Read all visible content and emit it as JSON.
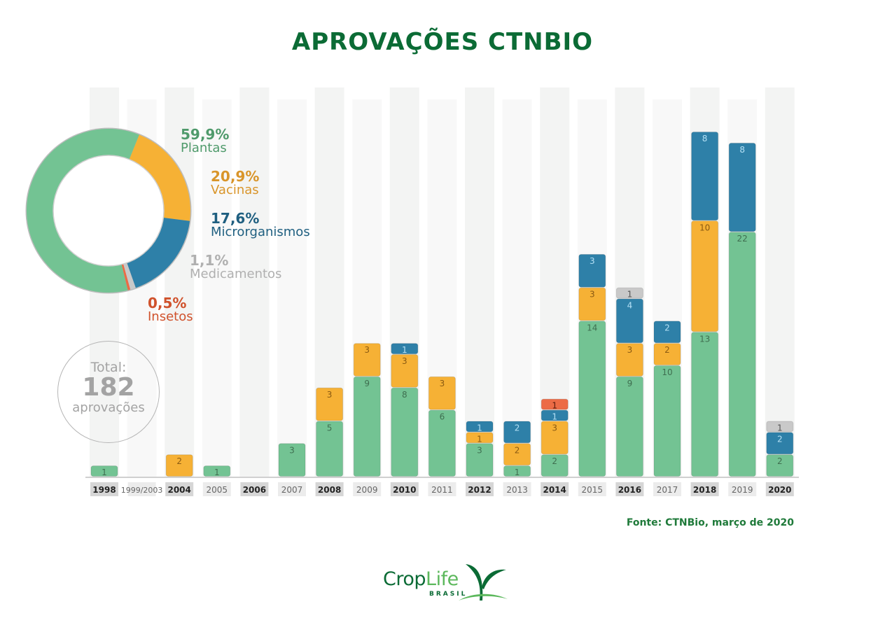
{
  "title": "APROVAÇÕES CTNBIO",
  "source": "Fonte: CTNBio, março de 2020",
  "logo": {
    "text_part1": "Crop",
    "text_part2": "Life",
    "subtext": "BRASIL"
  },
  "total": {
    "label": "Total:",
    "value": "182",
    "unit": "aprovações"
  },
  "colors": {
    "Plantas": "#73c393",
    "Vacinas": "#f6b135",
    "Microrganismos": "#2e80a8",
    "Insetos": "#ec6b45",
    "Medicamentos": "#c9c9c9"
  },
  "chart_data": [
    {
      "type": "bar",
      "stacked": true,
      "categories": [
        "1998",
        "1999/2003",
        "2004",
        "2005",
        "2006",
        "2007",
        "2008",
        "2009",
        "2010",
        "2011",
        "2012",
        "2013",
        "2014",
        "2015",
        "2016",
        "2017",
        "2018",
        "2019",
        "2020"
      ],
      "series": [
        {
          "name": "Plantas",
          "values": [
            1,
            0,
            0,
            1,
            0,
            3,
            5,
            9,
            8,
            6,
            3,
            1,
            2,
            14,
            9,
            10,
            13,
            22,
            2
          ]
        },
        {
          "name": "Vacinas",
          "values": [
            0,
            0,
            2,
            0,
            0,
            0,
            3,
            3,
            3,
            3,
            1,
            2,
            3,
            3,
            3,
            2,
            10,
            0,
            0
          ]
        },
        {
          "name": "Microrganismos",
          "values": [
            0,
            0,
            0,
            0,
            0,
            0,
            0,
            0,
            1,
            0,
            1,
            2,
            1,
            3,
            4,
            2,
            8,
            8,
            2
          ]
        },
        {
          "name": "Insetos",
          "values": [
            0,
            0,
            0,
            0,
            0,
            0,
            0,
            0,
            0,
            0,
            0,
            0,
            1,
            0,
            0,
            0,
            0,
            0,
            0
          ]
        },
        {
          "name": "Medicamentos",
          "values": [
            0,
            0,
            0,
            0,
            0,
            0,
            0,
            0,
            0,
            0,
            0,
            0,
            0,
            0,
            1,
            0,
            0,
            0,
            1
          ]
        }
      ],
      "data_labels": true,
      "grid": false
    },
    {
      "type": "pie",
      "donut": true,
      "slices": [
        {
          "name": "Vacinas",
          "pct_label": "20,9%",
          "value": 20.9
        },
        {
          "name": "Microrganismos",
          "pct_label": "17,6%",
          "value": 17.6
        },
        {
          "name": "Medicamentos",
          "pct_label": "1,1%",
          "value": 1.1
        },
        {
          "name": "Insetos",
          "pct_label": "0,5%",
          "value": 0.5
        },
        {
          "name": "Plantas",
          "pct_label": "59,9%",
          "value": 59.9
        }
      ]
    }
  ]
}
